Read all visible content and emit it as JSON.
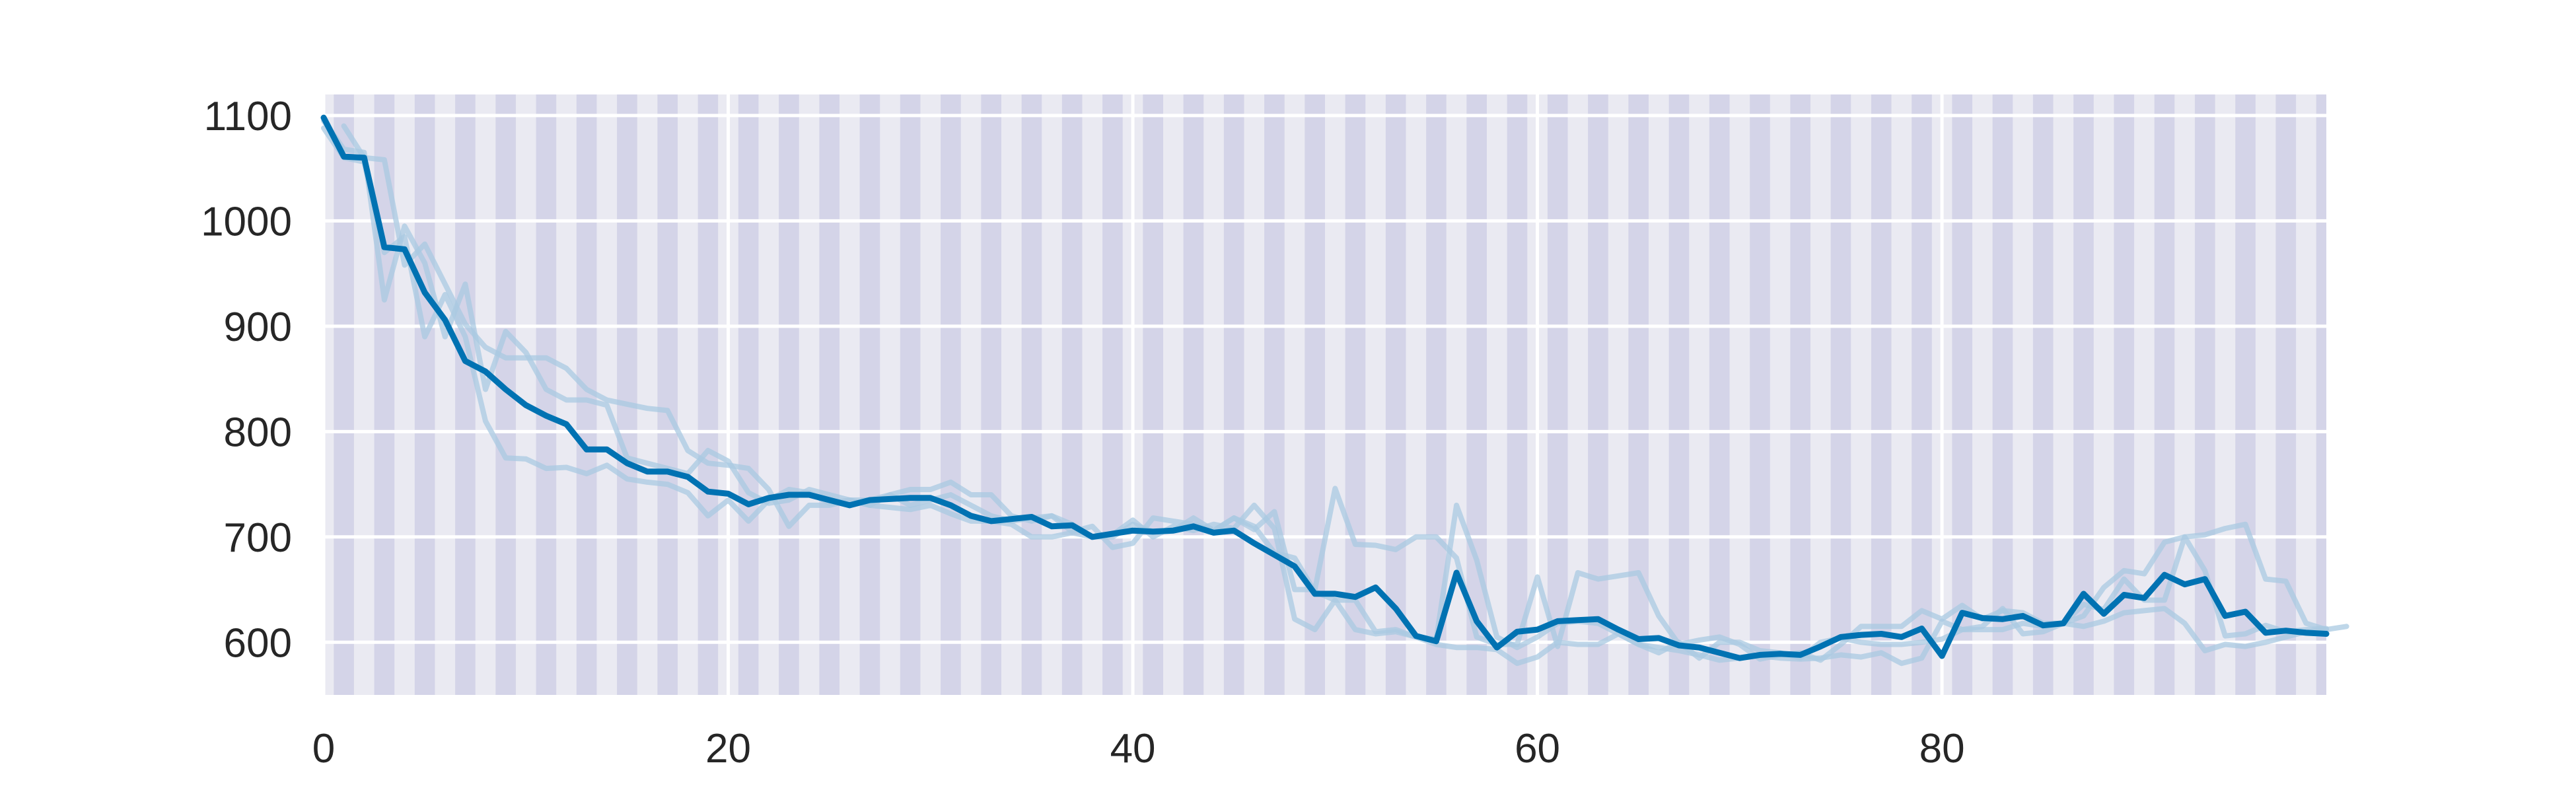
{
  "chart_data": {
    "type": "line",
    "title": "",
    "xlabel": "",
    "ylabel": "",
    "xlim": [
      0,
      99
    ],
    "ylim": [
      550,
      1120
    ],
    "x_ticks": [
      0,
      20,
      40,
      60,
      80
    ],
    "y_ticks": [
      600,
      700,
      800,
      900,
      1000,
      1100
    ],
    "grid": true,
    "background_color": "#EAEAF2",
    "stripe_color": "#D4D4E8",
    "stripe_period": 2,
    "series": [
      {
        "role": "faint",
        "color": "#a9c9e2",
        "values": [
          1095,
          1068,
          1065,
          925,
          995,
          960,
          890,
          940,
          840,
          895,
          875,
          840,
          830,
          830,
          825,
          775,
          770,
          765,
          760,
          782,
          772,
          742,
          732,
          735,
          745,
          740,
          735,
          730,
          740,
          730,
          735,
          740,
          730,
          720,
          715,
          718,
          720,
          712,
          700,
          700,
          712,
          705,
          706,
          718,
          706,
          718,
          710,
          685,
          680,
          648,
          640,
          640,
          610,
          612,
          605,
          603,
          730,
          678,
          605,
          595,
          605,
          618,
          620,
          618,
          608,
          598,
          595,
          592,
          588,
          583,
          585,
          587,
          585,
          584,
          585,
          588,
          586,
          590,
          580,
          585,
          620,
          612,
          615,
          632,
          608,
          610,
          618,
          636,
          631,
          660,
          640,
          640,
          700,
          668,
          606,
          608,
          616,
          610,
          612,
          613
        ],
        "x_start": 0
      },
      {
        "role": "faint",
        "color": "#a9c9e2",
        "values": [
          1088,
          1060,
          1056,
          970,
          985,
          890,
          930,
          890,
          810,
          775,
          774,
          765,
          766,
          760,
          768,
          755,
          752,
          750,
          742,
          720,
          735,
          715,
          735,
          745,
          742,
          732,
          735,
          730,
          728,
          726,
          730,
          722,
          715,
          715,
          712,
          700,
          700,
          704,
          700,
          702,
          716,
          700,
          710,
          706,
          712,
          708,
          730,
          708,
          622,
          612,
          640,
          612,
          608,
          610,
          605,
          598,
          595,
          595,
          593,
          580,
          586,
          600,
          598,
          598,
          608,
          598,
          590,
          600,
          585,
          600,
          600,
          592,
          590,
          585,
          600,
          604,
          600,
          598,
          598,
          600,
          603,
          612,
          612,
          612,
          618,
          615,
          618,
          615,
          620,
          628,
          630,
          632,
          618,
          592,
          598,
          596,
          600,
          605,
          610,
          612
        ],
        "x_start": 0
      },
      {
        "role": "faint",
        "color": "#a9c9e2",
        "values": [
          1090,
          1060,
          1058,
          958,
          978,
          940,
          902,
          880,
          870,
          870,
          870,
          860,
          840,
          830,
          826,
          822,
          820,
          782,
          770,
          768,
          765,
          745,
          710,
          730,
          730,
          735,
          735,
          740,
          745,
          745,
          752,
          740,
          740,
          720,
          715,
          720,
          705,
          710,
          690,
          694,
          718,
          715,
          712,
          706,
          718,
          707,
          724,
          650,
          650,
          746,
          693,
          692,
          688,
          700,
          700,
          680,
          605,
          598,
          598,
          662,
          596,
          666,
          660,
          663,
          666,
          625,
          598,
          602,
          605,
          598,
          584,
          588,
          590,
          583,
          598,
          615,
          615,
          615,
          630,
          622,
          635,
          622,
          630,
          628,
          618,
          618,
          625,
          652,
          668,
          665,
          695,
          700,
          702,
          708,
          712,
          660,
          658,
          618,
          612,
          615
        ],
        "x_start": 1
      },
      {
        "role": "mean",
        "color": "#0072B2",
        "values": [
          1098,
          1061,
          1060,
          975,
          973,
          932,
          906,
          867,
          857,
          840,
          825,
          815,
          807,
          783,
          783,
          770,
          762,
          762,
          757,
          743,
          741,
          731,
          737,
          740,
          740,
          735,
          730,
          735,
          736,
          737,
          737,
          730,
          720,
          715,
          717,
          719,
          710,
          711,
          700,
          703,
          706,
          705,
          706,
          710,
          704,
          706,
          694,
          683,
          672,
          646,
          646,
          643,
          652,
          632,
          606,
          601,
          666,
          620,
          595,
          610,
          612,
          620,
          621,
          622,
          612,
          603,
          604,
          597,
          595,
          590,
          585,
          588,
          589,
          588,
          596,
          605,
          607,
          608,
          605,
          613,
          587,
          628,
          623,
          622,
          625,
          616,
          618,
          646,
          627,
          645,
          642,
          664,
          655,
          660,
          625,
          629,
          609,
          611,
          609,
          608
        ],
        "x_start": 0
      }
    ]
  }
}
